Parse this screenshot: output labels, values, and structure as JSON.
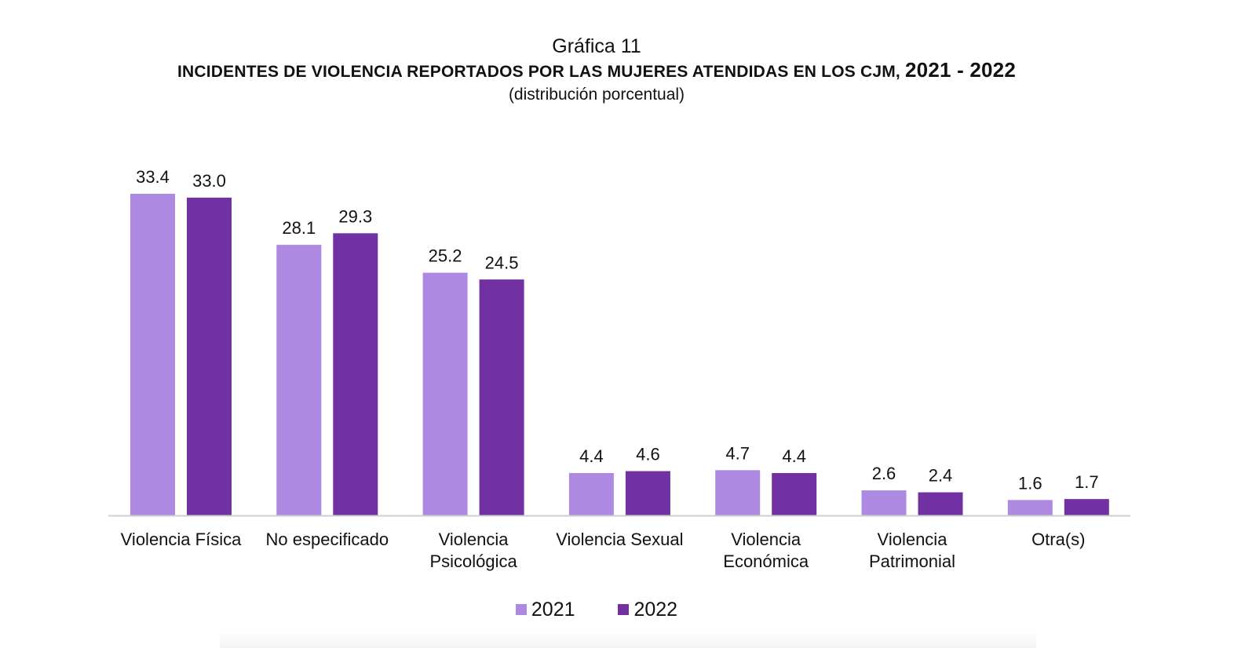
{
  "header": {
    "overline": "Gráfica 11",
    "title": "INCIDENTES DE VIOLENCIA REPORTADOS POR LAS MUJERES ATENDIDAS EN LOS CJM,",
    "title_years": "2021 - 2022",
    "subtitle": "(distribución porcentual)"
  },
  "chart_data": {
    "type": "bar",
    "categories": [
      [
        "Violencia Física"
      ],
      [
        "No especificado"
      ],
      [
        "Violencia",
        "Psicológica"
      ],
      [
        "Violencia Sexual"
      ],
      [
        "Violencia",
        "Económica"
      ],
      [
        "Violencia",
        "Patrimonial"
      ],
      [
        "Otra(s)"
      ]
    ],
    "series": [
      {
        "name": "2021",
        "values": [
          33.4,
          28.1,
          25.2,
          4.4,
          4.7,
          2.6,
          1.6
        ],
        "labels": [
          "33.4",
          "28.1",
          "25.2",
          "4.4",
          "4.7",
          "2.6",
          "1.6"
        ],
        "color": "#ae89e2"
      },
      {
        "name": "2022",
        "values": [
          33.0,
          29.3,
          24.5,
          4.6,
          4.4,
          2.4,
          1.7
        ],
        "labels": [
          "33.0",
          "29.3",
          "24.5",
          "4.6",
          "4.4",
          "2.4",
          "1.7"
        ],
        "color": "#7131a2"
      }
    ],
    "ylim": [
      0,
      33.4
    ],
    "grid": false,
    "legend_position": "bottom-center",
    "axis_color": "#cfcfcf"
  }
}
